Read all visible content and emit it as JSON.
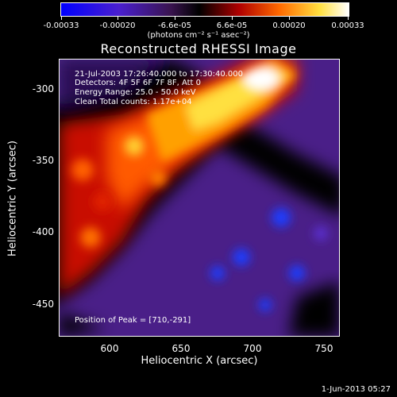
{
  "colorbar": {
    "tick_labels": [
      "-0.00033",
      "-0.00020",
      "-6.6e-05",
      "6.6e-05",
      "0.00020",
      "0.00033"
    ],
    "units": "(photons cm⁻² s⁻¹ asec⁻²)",
    "colors": [
      "#0000ff",
      "#6a2aa8",
      "#000000",
      "#c81000",
      "#ff7a00",
      "#ffe840",
      "#ffffff"
    ]
  },
  "title": "Reconstructed RHESSI Image",
  "info": {
    "time_range": "21-Jul-2003 17:26:40.000 to 17:30:40.000",
    "detectors": "Detectors: 4F 5F 6F 7F 8F, Att 0",
    "energy": "Energy Range: 25.0 - 50.0 keV",
    "counts": "Clean     Total counts: 1.17e+04"
  },
  "peak": "Position of Peak = [710,-291]",
  "axes": {
    "x_ticks": [
      "600",
      "650",
      "700",
      "750"
    ],
    "y_ticks": [
      "-300",
      "-350",
      "-400",
      "-450"
    ],
    "xlabel": "Heliocentric X (arcsec)",
    "ylabel": "Heliocentric Y (arcsec)",
    "xlim": [
      565,
      760
    ],
    "ylim": [
      -472,
      -280
    ]
  },
  "footer": "1-Jun-2013 05:27"
}
